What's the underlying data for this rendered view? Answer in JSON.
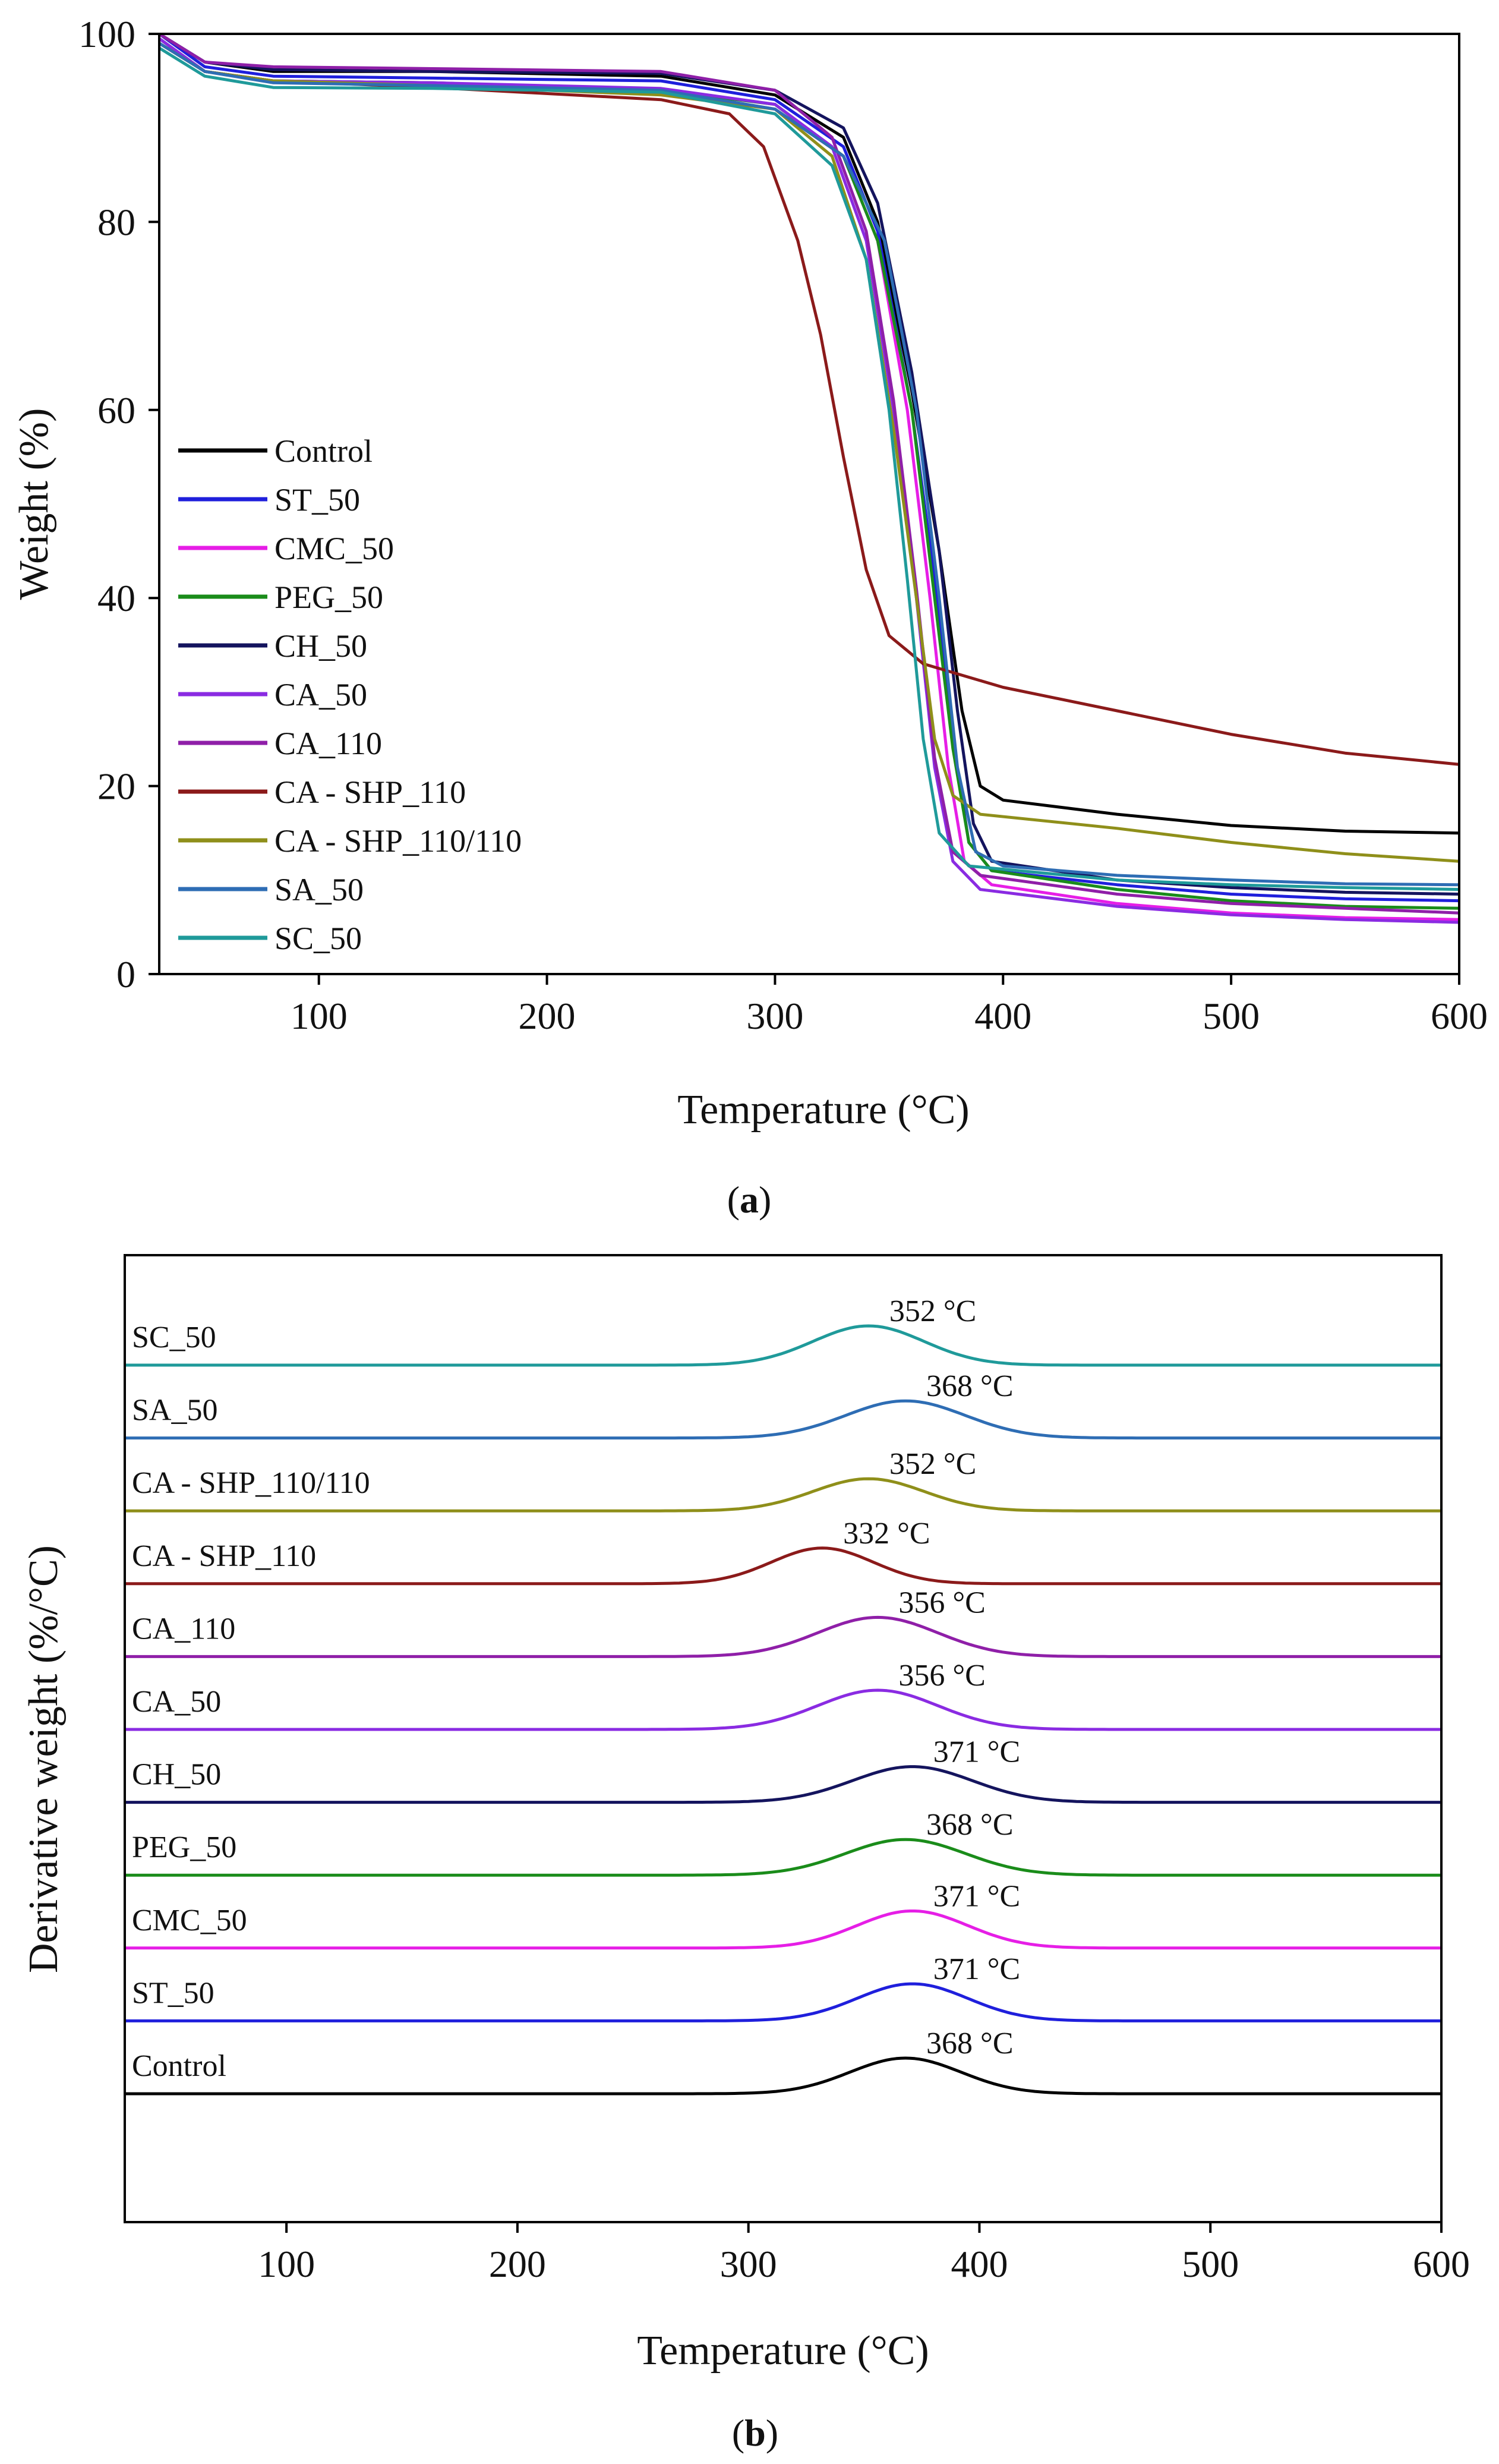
{
  "chart_data": [
    {
      "panel": "(a)",
      "panel_letter": "a",
      "type": "line",
      "title": "",
      "xlabel": "Temperature (°C)",
      "ylabel": "Weight (%)",
      "xlim": [
        30,
        600
      ],
      "ylim": [
        0,
        100
      ],
      "x_ticks": [
        100,
        200,
        300,
        400,
        500,
        600
      ],
      "y_ticks": [
        0,
        20,
        40,
        60,
        80,
        100
      ],
      "legend_position": "center-left",
      "series": [
        {
          "name": "Control",
          "color": "#000000",
          "points": [
            [
              30,
              100
            ],
            [
              50,
              97
            ],
            [
              80,
              96
            ],
            [
              150,
              96
            ],
            [
              250,
              95.5
            ],
            [
              300,
              93.5
            ],
            [
              330,
              89
            ],
            [
              345,
              80
            ],
            [
              360,
              62
            ],
            [
              372,
              45
            ],
            [
              382,
              28
            ],
            [
              390,
              20
            ],
            [
              400,
              18.5
            ],
            [
              450,
              17
            ],
            [
              500,
              15.8
            ],
            [
              550,
              15.2
            ],
            [
              600,
              15
            ]
          ]
        },
        {
          "name": "ST_50",
          "color": "#1f1fdc",
          "points": [
            [
              30,
              100
            ],
            [
              50,
              96.5
            ],
            [
              80,
              95.5
            ],
            [
              150,
              95.3
            ],
            [
              250,
              95
            ],
            [
              300,
              93
            ],
            [
              330,
              88
            ],
            [
              345,
              79
            ],
            [
              360,
              60
            ],
            [
              370,
              42
            ],
            [
              378,
              25
            ],
            [
              385,
              14
            ],
            [
              395,
              11
            ],
            [
              450,
              9.5
            ],
            [
              500,
              8.5
            ],
            [
              550,
              8
            ],
            [
              600,
              7.8
            ]
          ]
        },
        {
          "name": "CMC_50",
          "color": "#e61ee6",
          "points": [
            [
              30,
              99.5
            ],
            [
              50,
              96
            ],
            [
              80,
              95
            ],
            [
              150,
              94.8
            ],
            [
              250,
              94
            ],
            [
              300,
              92
            ],
            [
              330,
              87
            ],
            [
              345,
              78
            ],
            [
              358,
              60
            ],
            [
              368,
              40
            ],
            [
              376,
              22
            ],
            [
              383,
              12
            ],
            [
              395,
              9.5
            ],
            [
              450,
              7.5
            ],
            [
              500,
              6.5
            ],
            [
              550,
              6
            ],
            [
              600,
              5.8
            ]
          ]
        },
        {
          "name": "PEG_50",
          "color": "#1a8c1a",
          "points": [
            [
              30,
              99.5
            ],
            [
              50,
              96
            ],
            [
              80,
              95
            ],
            [
              150,
              94.8
            ],
            [
              250,
              94
            ],
            [
              300,
              92.5
            ],
            [
              330,
              87
            ],
            [
              345,
              78
            ],
            [
              360,
              60
            ],
            [
              370,
              40
            ],
            [
              378,
              24
            ],
            [
              385,
              14
            ],
            [
              395,
              11
            ],
            [
              450,
              9
            ],
            [
              500,
              7.8
            ],
            [
              550,
              7.2
            ],
            [
              600,
              7
            ]
          ]
        },
        {
          "name": "CH_50",
          "color": "#14145e",
          "points": [
            [
              30,
              100
            ],
            [
              50,
              97
            ],
            [
              80,
              96.2
            ],
            [
              150,
              96
            ],
            [
              250,
              95.8
            ],
            [
              300,
              94
            ],
            [
              330,
              90
            ],
            [
              345,
              82
            ],
            [
              360,
              64
            ],
            [
              372,
              45
            ],
            [
              380,
              28
            ],
            [
              387,
              16
            ],
            [
              395,
              12
            ],
            [
              450,
              10
            ],
            [
              500,
              9.2
            ],
            [
              550,
              8.7
            ],
            [
              600,
              8.5
            ]
          ]
        },
        {
          "name": "CA_50",
          "color": "#8a2be2",
          "points": [
            [
              30,
              99.5
            ],
            [
              50,
              96
            ],
            [
              80,
              95
            ],
            [
              150,
              94.8
            ],
            [
              250,
              94.2
            ],
            [
              300,
              92.5
            ],
            [
              325,
              88
            ],
            [
              340,
              78
            ],
            [
              352,
              60
            ],
            [
              362,
              40
            ],
            [
              370,
              22
            ],
            [
              378,
              12
            ],
            [
              390,
              9
            ],
            [
              450,
              7.2
            ],
            [
              500,
              6.3
            ],
            [
              550,
              5.8
            ],
            [
              600,
              5.5
            ]
          ]
        },
        {
          "name": "CA_110",
          "color": "#8f1fa8",
          "points": [
            [
              30,
              100
            ],
            [
              50,
              97
            ],
            [
              80,
              96.5
            ],
            [
              150,
              96.3
            ],
            [
              250,
              96
            ],
            [
              300,
              94
            ],
            [
              325,
              89
            ],
            [
              340,
              79
            ],
            [
              352,
              61
            ],
            [
              362,
              41
            ],
            [
              370,
              23
            ],
            [
              378,
              13
            ],
            [
              390,
              10.5
            ],
            [
              450,
              8.5
            ],
            [
              500,
              7.5
            ],
            [
              550,
              7
            ],
            [
              600,
              6.5
            ]
          ]
        },
        {
          "name": "CA - SHP_110",
          "color": "#8b1a1a",
          "points": [
            [
              30,
              99
            ],
            [
              50,
              96
            ],
            [
              80,
              95
            ],
            [
              150,
              94.3
            ],
            [
              250,
              93
            ],
            [
              280,
              91.5
            ],
            [
              295,
              88
            ],
            [
              310,
              78
            ],
            [
              320,
              68
            ],
            [
              330,
              55
            ],
            [
              340,
              43
            ],
            [
              350,
              36
            ],
            [
              365,
              33
            ],
            [
              400,
              30.5
            ],
            [
              450,
              28
            ],
            [
              500,
              25.5
            ],
            [
              550,
              23.5
            ],
            [
              600,
              22.3
            ]
          ]
        },
        {
          "name": "CA - SHP_110/110",
          "color": "#8f8f1a",
          "points": [
            [
              30,
              99
            ],
            [
              50,
              96
            ],
            [
              80,
              95
            ],
            [
              150,
              94.5
            ],
            [
              250,
              93.5
            ],
            [
              300,
              92
            ],
            [
              325,
              87
            ],
            [
              340,
              76
            ],
            [
              352,
              58
            ],
            [
              362,
              40
            ],
            [
              370,
              25
            ],
            [
              378,
              19
            ],
            [
              390,
              17
            ],
            [
              450,
              15.5
            ],
            [
              500,
              14
            ],
            [
              550,
              12.8
            ],
            [
              600,
              12
            ]
          ]
        },
        {
          "name": "SA_50",
          "color": "#2e6db4",
          "points": [
            [
              30,
              99
            ],
            [
              50,
              96
            ],
            [
              80,
              94.8
            ],
            [
              150,
              94.5
            ],
            [
              250,
              94
            ],
            [
              300,
              92
            ],
            [
              330,
              87
            ],
            [
              348,
              78
            ],
            [
              362,
              60
            ],
            [
              372,
              40
            ],
            [
              380,
              22
            ],
            [
              388,
              13
            ],
            [
              400,
              11.5
            ],
            [
              450,
              10.5
            ],
            [
              500,
              10
            ],
            [
              550,
              9.6
            ],
            [
              600,
              9.5
            ]
          ]
        },
        {
          "name": "SC_50",
          "color": "#1f9a9a",
          "points": [
            [
              30,
              98.5
            ],
            [
              50,
              95.5
            ],
            [
              80,
              94.3
            ],
            [
              150,
              94.2
            ],
            [
              250,
              93.8
            ],
            [
              300,
              91.5
            ],
            [
              325,
              86
            ],
            [
              340,
              76
            ],
            [
              350,
              60
            ],
            [
              358,
              42
            ],
            [
              365,
              25
            ],
            [
              372,
              15
            ],
            [
              385,
              11.5
            ],
            [
              450,
              10
            ],
            [
              500,
              9.5
            ],
            [
              550,
              9.2
            ],
            [
              600,
              9
            ]
          ]
        }
      ]
    },
    {
      "panel": "(b)",
      "panel_letter": "b",
      "type": "line",
      "title": "",
      "xlabel": "Temperature (°C)",
      "ylabel": "Derivative weight (%/°C)",
      "xlim": [
        30,
        600
      ],
      "x_ticks": [
        100,
        200,
        300,
        400,
        500,
        600
      ],
      "y_ticks": [],
      "series": [
        {
          "name": "SC_50",
          "color": "#1f9a9a",
          "peak_temp": 352,
          "peak_label": "352 °C",
          "peak_width": 24,
          "peak_height": 0.55
        },
        {
          "name": "SA_50",
          "color": "#2e6db4",
          "peak_temp": 368,
          "peak_label": "368 °C",
          "peak_width": 26,
          "peak_height": 0.52
        },
        {
          "name": "CA - SHP_110/110",
          "color": "#8f8f1a",
          "peak_temp": 352,
          "peak_label": "352 °C",
          "peak_width": 24,
          "peak_height": 0.45
        },
        {
          "name": "CA - SHP_110",
          "color": "#8b1a1a",
          "peak_temp": 332,
          "peak_label": "332 °C",
          "peak_width": 22,
          "peak_height": 0.5
        },
        {
          "name": "CA_110",
          "color": "#8f1fa8",
          "peak_temp": 356,
          "peak_label": "356 °C",
          "peak_width": 26,
          "peak_height": 0.55
        },
        {
          "name": "CA_50",
          "color": "#8a2be2",
          "peak_temp": 356,
          "peak_label": "356 °C",
          "peak_width": 26,
          "peak_height": 0.55
        },
        {
          "name": "CH_50",
          "color": "#14145e",
          "peak_temp": 371,
          "peak_label": "371 °C",
          "peak_width": 26,
          "peak_height": 0.5
        },
        {
          "name": "PEG_50",
          "color": "#1a8c1a",
          "peak_temp": 368,
          "peak_label": "368 °C",
          "peak_width": 26,
          "peak_height": 0.5
        },
        {
          "name": "CMC_50",
          "color": "#e61ee6",
          "peak_temp": 371,
          "peak_label": "371 °C",
          "peak_width": 24,
          "peak_height": 0.52
        },
        {
          "name": "ST_50",
          "color": "#1f1fdc",
          "peak_temp": 371,
          "peak_label": "371 °C",
          "peak_width": 24,
          "peak_height": 0.52
        },
        {
          "name": "Control",
          "color": "#000000",
          "peak_temp": 368,
          "peak_label": "368 °C",
          "peak_width": 24,
          "peak_height": 0.5
        }
      ]
    }
  ]
}
